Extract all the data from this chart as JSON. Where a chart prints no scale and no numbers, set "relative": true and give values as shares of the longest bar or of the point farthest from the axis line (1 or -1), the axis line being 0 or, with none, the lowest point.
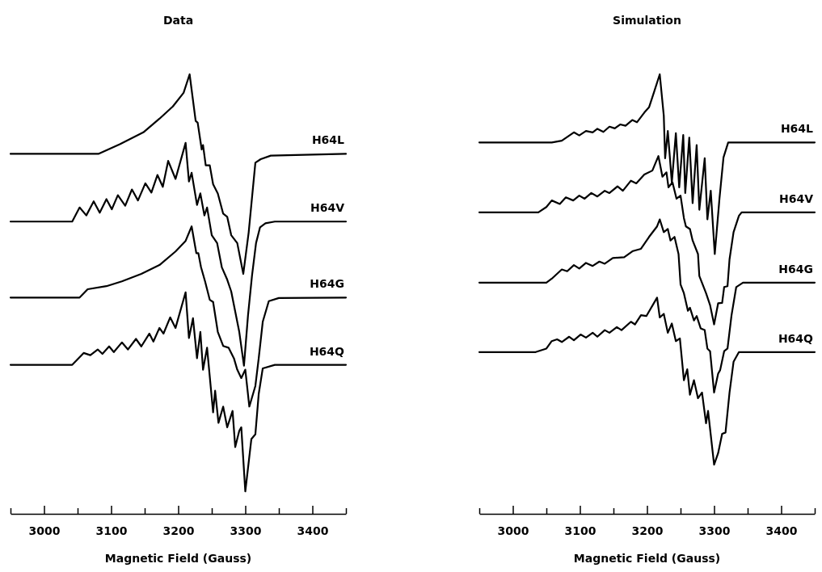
{
  "chart_data": [
    {
      "type": "line",
      "title": "Data",
      "xlabel": "Magnetic Field (Gauss)",
      "relative": true,
      "tick_labels": "x",
      "xlim": [
        2950,
        3450
      ],
      "xticks": [
        {
          "value": 2950,
          "label": null
        },
        3000,
        {
          "value": 3050,
          "label": null
        },
        3100,
        {
          "value": 3150,
          "label": null
        },
        3200,
        {
          "value": 3250,
          "label": null
        },
        3300,
        {
          "value": 3350,
          "label": null
        },
        3400,
        {
          "value": 3450,
          "label": null
        }
      ],
      "series": [
        {
          "name": "H64L",
          "color": "#000000",
          "x": [
            2950,
            3081,
            3113,
            3148,
            3172,
            3192,
            3208,
            3217,
            3226,
            3229,
            3235,
            3237,
            3241,
            3247,
            3252,
            3259,
            3267,
            3273,
            3279,
            3288,
            3297,
            3305,
            3315,
            3323,
            3338,
            3450
          ],
          "values": [
            0.819,
            0.819,
            0.841,
            0.868,
            0.899,
            0.927,
            0.958,
            1,
            0.894,
            0.89,
            0.829,
            0.839,
            0.793,
            0.793,
            0.75,
            0.729,
            0.683,
            0.676,
            0.634,
            0.616,
            0.546,
            0.64,
            0.799,
            0.807,
            0.815,
            0.819
          ]
        },
        {
          "name": "H64V",
          "color": "#000000",
          "x": [
            2950,
            3042,
            3053,
            3063,
            3074,
            3083,
            3093,
            3101,
            3110,
            3121,
            3131,
            3140,
            3151,
            3160,
            3169,
            3177,
            3185,
            3196,
            3211,
            3216,
            3220,
            3228,
            3233,
            3239,
            3243,
            3250,
            3258,
            3265,
            3273,
            3279,
            3285,
            3291,
            3298,
            3304,
            3310,
            3316,
            3322,
            3330,
            3344,
            3450
          ],
          "values": [
            0.665,
            0.665,
            0.697,
            0.679,
            0.711,
            0.685,
            0.716,
            0.693,
            0.725,
            0.701,
            0.738,
            0.713,
            0.752,
            0.731,
            0.771,
            0.744,
            0.803,
            0.762,
            0.844,
            0.756,
            0.776,
            0.703,
            0.729,
            0.679,
            0.697,
            0.634,
            0.616,
            0.561,
            0.533,
            0.506,
            0.46,
            0.414,
            0.337,
            0.451,
            0.542,
            0.616,
            0.652,
            0.661,
            0.665,
            0.665
          ]
        },
        {
          "name": "H64G",
          "color": "#000000",
          "x": [
            2950,
            3053,
            3065,
            3093,
            3116,
            3145,
            3172,
            3196,
            3211,
            3220,
            3227,
            3230,
            3234,
            3240,
            3247,
            3252,
            3259,
            3267,
            3275,
            3283,
            3288,
            3294,
            3300,
            3306,
            3315,
            3320,
            3326,
            3335,
            3350,
            3450
          ],
          "values": [
            0.492,
            0.492,
            0.511,
            0.518,
            0.529,
            0.546,
            0.566,
            0.597,
            0.621,
            0.654,
            0.593,
            0.593,
            0.561,
            0.529,
            0.487,
            0.482,
            0.414,
            0.382,
            0.378,
            0.354,
            0.328,
            0.309,
            0.328,
            0.244,
            0.291,
            0.354,
            0.437,
            0.484,
            0.491,
            0.492
          ]
        },
        {
          "name": "H64Q",
          "color": "#000000",
          "x": [
            2950,
            3042,
            3059,
            3069,
            3080,
            3087,
            3097,
            3104,
            3116,
            3125,
            3137,
            3145,
            3157,
            3163,
            3172,
            3178,
            3188,
            3196,
            3211,
            3216,
            3222,
            3228,
            3233,
            3237,
            3243,
            3252,
            3255,
            3260,
            3267,
            3273,
            3281,
            3285,
            3291,
            3294,
            3300,
            3309,
            3315,
            3320,
            3326,
            3344,
            3450
          ],
          "values": [
            0.339,
            0.339,
            0.366,
            0.361,
            0.374,
            0.364,
            0.381,
            0.368,
            0.39,
            0.374,
            0.398,
            0.381,
            0.41,
            0.392,
            0.423,
            0.41,
            0.447,
            0.423,
            0.504,
            0.4,
            0.445,
            0.354,
            0.414,
            0.328,
            0.378,
            0.231,
            0.28,
            0.207,
            0.244,
            0.197,
            0.234,
            0.152,
            0.189,
            0.197,
            0.051,
            0.17,
            0.181,
            0.273,
            0.331,
            0.339,
            0.339
          ]
        }
      ]
    },
    {
      "type": "line",
      "title": "Simulation",
      "xlabel": "Magnetic Field (Gauss)",
      "relative": true,
      "tick_labels": "x",
      "xlim": [
        2950,
        3450
      ],
      "xticks": [
        {
          "value": 2950,
          "label": null
        },
        3000,
        {
          "value": 3050,
          "label": null
        },
        3100,
        {
          "value": 3150,
          "label": null
        },
        3200,
        {
          "value": 3250,
          "label": null
        },
        3300,
        {
          "value": 3350,
          "label": null
        },
        3400,
        {
          "value": 3450,
          "label": null
        }
      ],
      "series": [
        {
          "name": "H64L",
          "color": "#000000",
          "x": [
            2950,
            3058,
            3073,
            3091,
            3099,
            3109,
            3119,
            3126,
            3135,
            3144,
            3152,
            3160,
            3168,
            3178,
            3185,
            3196,
            3203,
            3211,
            3219,
            3225,
            3227,
            3231,
            3237,
            3243,
            3248,
            3254,
            3257,
            3263,
            3268,
            3274,
            3278,
            3286,
            3290,
            3295,
            3301,
            3308,
            3314,
            3321,
            3450
          ],
          "values": [
            0.845,
            0.845,
            0.849,
            0.868,
            0.861,
            0.871,
            0.868,
            0.876,
            0.869,
            0.881,
            0.877,
            0.886,
            0.883,
            0.896,
            0.891,
            0.913,
            0.925,
            0.962,
            1,
            0.906,
            0.809,
            0.871,
            0.754,
            0.866,
            0.743,
            0.862,
            0.73,
            0.856,
            0.707,
            0.839,
            0.692,
            0.809,
            0.67,
            0.735,
            0.591,
            0.717,
            0.811,
            0.845,
            0.845
          ]
        },
        {
          "name": "H64V",
          "color": "#000000",
          "x": [
            2950,
            3038,
            3050,
            3058,
            3070,
            3079,
            3090,
            3099,
            3107,
            3117,
            3126,
            3137,
            3144,
            3156,
            3164,
            3176,
            3184,
            3196,
            3208,
            3217,
            3223,
            3229,
            3232,
            3238,
            3244,
            3250,
            3255,
            3258,
            3264,
            3268,
            3276,
            3278,
            3288,
            3294,
            3300,
            3306,
            3312,
            3315,
            3320,
            3323,
            3329,
            3337,
            3341,
            3450
          ],
          "values": [
            0.686,
            0.686,
            0.698,
            0.713,
            0.705,
            0.72,
            0.713,
            0.724,
            0.717,
            0.73,
            0.722,
            0.735,
            0.73,
            0.745,
            0.735,
            0.758,
            0.752,
            0.772,
            0.781,
            0.814,
            0.767,
            0.777,
            0.743,
            0.754,
            0.717,
            0.724,
            0.673,
            0.654,
            0.648,
            0.622,
            0.591,
            0.541,
            0.502,
            0.475,
            0.431,
            0.479,
            0.48,
            0.516,
            0.518,
            0.579,
            0.641,
            0.678,
            0.686,
            0.686
          ]
        },
        {
          "name": "H64G",
          "color": "#000000",
          "x": [
            2950,
            3050,
            3058,
            3073,
            3081,
            3091,
            3099,
            3109,
            3119,
            3129,
            3137,
            3149,
            3166,
            3179,
            3191,
            3203,
            3215,
            3219,
            3225,
            3231,
            3235,
            3241,
            3247,
            3250,
            3255,
            3261,
            3264,
            3270,
            3274,
            3280,
            3286,
            3290,
            3294,
            3300,
            3306,
            3309,
            3315,
            3320,
            3326,
            3333,
            3343,
            3450
          ],
          "values": [
            0.526,
            0.526,
            0.535,
            0.556,
            0.552,
            0.566,
            0.558,
            0.571,
            0.564,
            0.574,
            0.569,
            0.582,
            0.584,
            0.598,
            0.603,
            0.63,
            0.654,
            0.67,
            0.641,
            0.648,
            0.622,
            0.63,
            0.591,
            0.522,
            0.502,
            0.462,
            0.469,
            0.44,
            0.45,
            0.422,
            0.418,
            0.376,
            0.37,
            0.276,
            0.319,
            0.327,
            0.37,
            0.376,
            0.452,
            0.516,
            0.526,
            0.526
          ]
        },
        {
          "name": "H64Q",
          "color": "#000000",
          "x": [
            2950,
            3034,
            3050,
            3058,
            3066,
            3073,
            3084,
            3091,
            3101,
            3109,
            3119,
            3126,
            3137,
            3144,
            3155,
            3162,
            3176,
            3182,
            3191,
            3199,
            3215,
            3219,
            3225,
            3231,
            3237,
            3243,
            3249,
            3255,
            3260,
            3264,
            3270,
            3276,
            3282,
            3288,
            3291,
            3300,
            3306,
            3312,
            3317,
            3323,
            3329,
            3337,
            3450
          ],
          "values": [
            0.368,
            0.368,
            0.376,
            0.393,
            0.397,
            0.391,
            0.403,
            0.395,
            0.408,
            0.401,
            0.412,
            0.403,
            0.418,
            0.412,
            0.425,
            0.418,
            0.437,
            0.431,
            0.452,
            0.45,
            0.492,
            0.447,
            0.455,
            0.412,
            0.433,
            0.393,
            0.399,
            0.304,
            0.329,
            0.271,
            0.304,
            0.263,
            0.276,
            0.206,
            0.234,
            0.112,
            0.138,
            0.182,
            0.185,
            0.276,
            0.346,
            0.368,
            0.368
          ]
        }
      ]
    }
  ]
}
